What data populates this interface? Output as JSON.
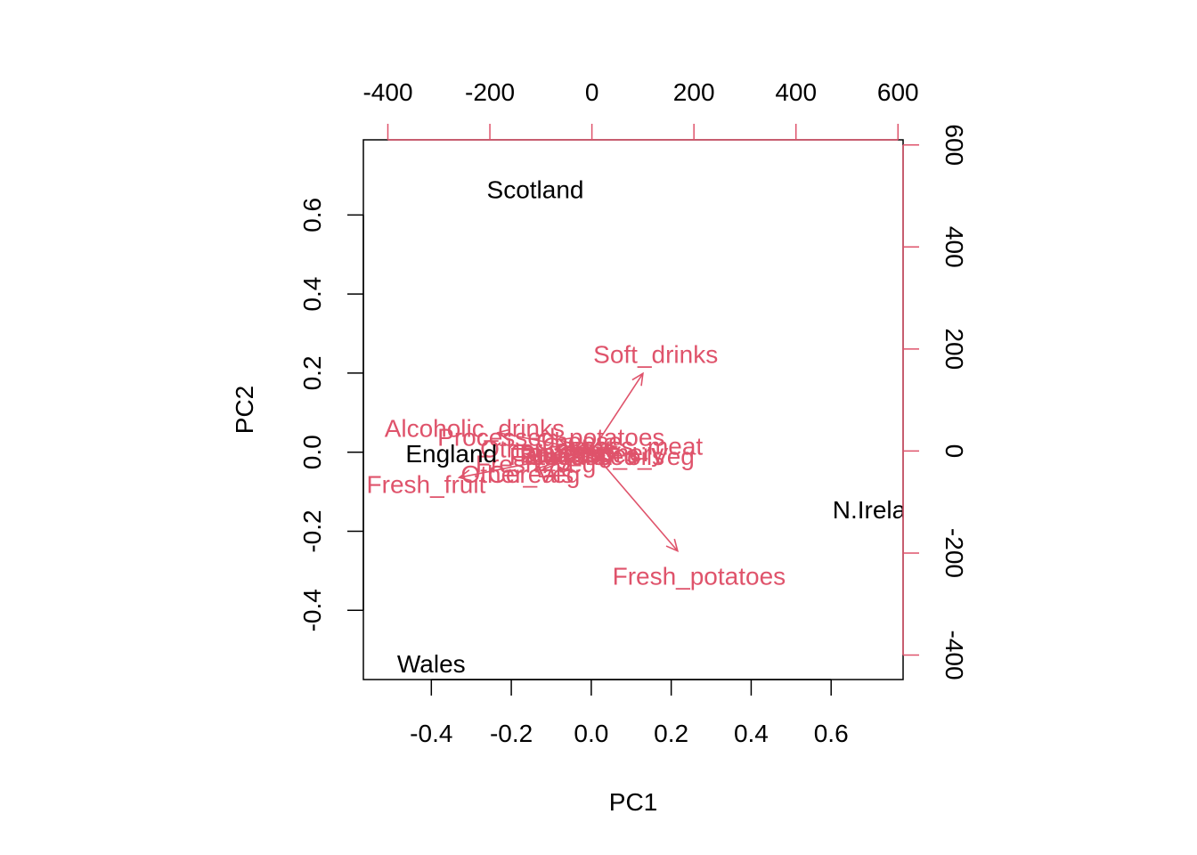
{
  "chart_data": {
    "type": "scatter",
    "subtype": "biplot",
    "title": "",
    "xlabel": "PC1",
    "ylabel": "PC2",
    "xlim": [
      -0.57,
      0.78
    ],
    "ylim": [
      -0.575,
      0.79
    ],
    "x_ticks": [
      -0.4,
      -0.2,
      0.0,
      0.2,
      0.4,
      0.6
    ],
    "x_tick_labels": [
      "-0.4",
      "-0.2",
      "0.0",
      "0.2",
      "0.4",
      "0.6"
    ],
    "y_ticks": [
      -0.4,
      -0.2,
      0.0,
      0.2,
      0.4,
      0.6
    ],
    "y_tick_labels": [
      "-0.4",
      "-0.2",
      "0.0",
      "0.2",
      "0.4",
      "0.6"
    ],
    "loadings_xlim": [
      -448,
      610
    ],
    "loadings_ylim": [
      -448,
      610
    ],
    "top_ticks": [
      -400,
      -200,
      0,
      200,
      400,
      600
    ],
    "top_tick_labels": [
      "-400",
      "-200",
      "0",
      "200",
      "400",
      "600"
    ],
    "right_ticks": [
      -400,
      -200,
      0,
      200,
      400,
      600
    ],
    "right_tick_labels": [
      "-400",
      "-200",
      "0",
      "200",
      "400",
      "600"
    ],
    "loading_color": "#DF536B",
    "observation_color": "#000000",
    "observations": [
      {
        "label": "England",
        "x": -0.35,
        "y": -0.003
      },
      {
        "label": "Wales",
        "x": -0.4,
        "y": -0.535
      },
      {
        "label": "Scotland",
        "x": -0.14,
        "y": 0.665
      },
      {
        "label": "N.Ireland",
        "x": 0.73,
        "y": -0.145
      }
    ],
    "loadings": [
      {
        "label": "Cheese",
        "x": -25,
        "y": 20
      },
      {
        "label": "Carcass_meat",
        "x": 60,
        "y": 10
      },
      {
        "label": "Other_meat",
        "x": -90,
        "y": 5
      },
      {
        "label": "Fish",
        "x": -40,
        "y": -5
      },
      {
        "label": "Fats_and_oils",
        "x": -10,
        "y": -10
      },
      {
        "label": "Sugars",
        "x": -50,
        "y": -10
      },
      {
        "label": "Fresh_potatoes",
        "x": 210,
        "y": -245
      },
      {
        "label": "Fresh_Veg",
        "x": -110,
        "y": -25
      },
      {
        "label": "Other_Veg",
        "x": -140,
        "y": -45
      },
      {
        "label": "Processed_potatoes",
        "x": -80,
        "y": 28
      },
      {
        "label": "Processed_Veg",
        "x": 30,
        "y": -10
      },
      {
        "label": "Fresh_fruit",
        "x": -325,
        "y": -65
      },
      {
        "label": "Cereals",
        "x": -120,
        "y": -45
      },
      {
        "label": "Beverages",
        "x": -25,
        "y": -5
      },
      {
        "label": "Soft_drinks",
        "x": 125,
        "y": 190
      },
      {
        "label": "Alcoholic_drinks",
        "x": -230,
        "y": 45
      },
      {
        "label": "Confectionery",
        "x": -10,
        "y": -3
      }
    ]
  }
}
